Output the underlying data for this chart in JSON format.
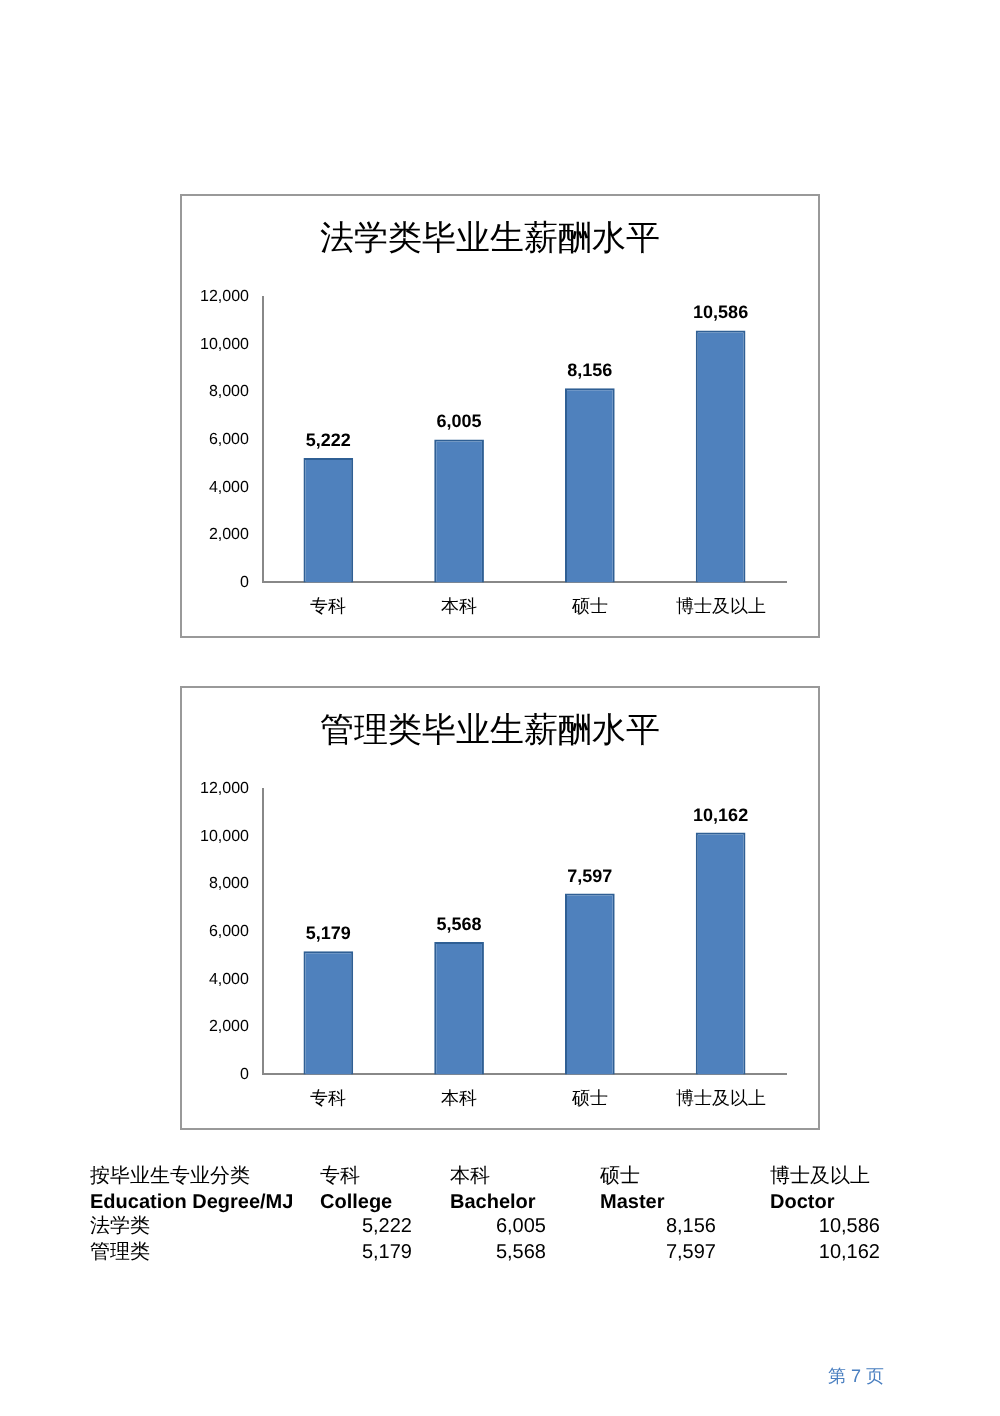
{
  "chart_data": [
    {
      "type": "bar",
      "title": "法学类毕业生薪酬水平",
      "categories": [
        "专科",
        "本科",
        "硕士",
        "博士及以上"
      ],
      "values": [
        5222,
        6005,
        8156,
        10586
      ],
      "value_labels": [
        "5,222",
        "6,005",
        "8,156",
        "10,586"
      ],
      "color": "#4f81bd",
      "ylim": [
        0,
        12000
      ],
      "yticks": [
        0,
        {
          "value": 2000,
          "label": "2,000"
        },
        {
          "value": 4000,
          "label": "4,000"
        },
        {
          "value": 6000,
          "label": "6,000"
        },
        {
          "value": 8000,
          "label": "8,000"
        },
        {
          "value": 10000,
          "label": "10,000"
        },
        {
          "value": 12000,
          "label": "12,000"
        }
      ],
      "grid": false
    },
    {
      "type": "bar",
      "title": "管理类毕业生薪酬水平",
      "categories": [
        "专科",
        "本科",
        "硕士",
        "博士及以上"
      ],
      "values": [
        5179,
        5568,
        7597,
        10162
      ],
      "value_labels": [
        "5,179",
        "5,568",
        "7,597",
        "10,162"
      ],
      "color": "#4f81bd",
      "ylim": [
        0,
        12000
      ],
      "yticks": [
        0,
        {
          "value": 2000,
          "label": "2,000"
        },
        {
          "value": 4000,
          "label": "4,000"
        },
        {
          "value": 6000,
          "label": "6,000"
        },
        {
          "value": 8000,
          "label": "8,000"
        },
        {
          "value": 10000,
          "label": "10,000"
        },
        {
          "value": 12000,
          "label": "12,000"
        }
      ],
      "grid": false
    },
    {
      "type": "other",
      "annotations": [
        "按毕业生专业分类",
        "专科",
        "本科",
        "硕士",
        "博士及以上",
        "Education Degree/MJ",
        "College",
        "Bachelor",
        "Master",
        "Doctor",
        "法学类",
        "5,222",
        "6,005",
        "8,156",
        "10,586",
        "管理类",
        "5,179",
        "5,568",
        "7,597",
        "10,162"
      ]
    },
    {
      "type": "other",
      "annotations": [
        "第 7 页"
      ]
    }
  ]
}
